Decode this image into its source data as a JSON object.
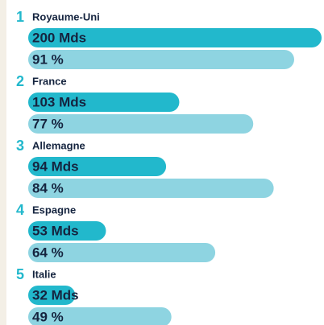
{
  "chart_data": {
    "type": "bar",
    "ranks": [
      1,
      2,
      3,
      4,
      5
    ],
    "categories": [
      "Royaume-Uni",
      "France",
      "Allemagne",
      "Espagne",
      "Italie"
    ],
    "series": [
      {
        "color": "#22b8cc",
        "values": [
          200,
          103,
          94,
          53,
          32
        ],
        "value_labels": [
          "200 Mds",
          "103 Mds",
          "94 Mds",
          "53 Mds",
          "32 Mds"
        ]
      },
      {
        "color": "#8ed4e1",
        "values": [
          91,
          77,
          84,
          64,
          49
        ],
        "value_labels": [
          "91 %",
          "77 %",
          "84 %",
          "64 %",
          "49 %"
        ]
      }
    ]
  }
}
